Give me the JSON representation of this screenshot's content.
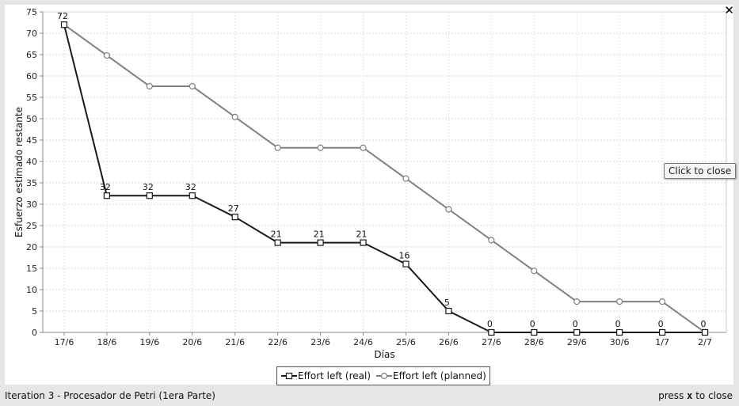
{
  "window": {
    "caption": "Iteration 3 - Procesador de Petri (1era Parte)",
    "hint_prefix": "press",
    "hint_key": "x",
    "hint_suffix": "to close",
    "close_glyph": "✕",
    "close_icon": "close-icon",
    "tooltip": "Click to close"
  },
  "chart_data": {
    "type": "line",
    "xlabel": "Días",
    "ylabel": "Esfuerzo estimado restante",
    "categories": [
      "17/6",
      "18/6",
      "19/6",
      "20/6",
      "21/6",
      "22/6",
      "23/6",
      "24/6",
      "25/6",
      "26/6",
      "27/6",
      "28/6",
      "29/6",
      "30/6",
      "1/7",
      "2/7"
    ],
    "ylim": [
      0,
      75
    ],
    "yticks": [
      0,
      5,
      10,
      15,
      20,
      25,
      30,
      35,
      40,
      45,
      50,
      55,
      60,
      65,
      70,
      75
    ],
    "grid": true,
    "legend_position": "bottom",
    "series": [
      {
        "name": "Effort left (real)",
        "color": "#1a1a1a",
        "marker": "square",
        "show_labels": true,
        "values": [
          72,
          32,
          32,
          32,
          27,
          21,
          21,
          21,
          16,
          5,
          0,
          0,
          0,
          0,
          0,
          0
        ]
      },
      {
        "name": "Effort left (planned)",
        "color": "#808080",
        "marker": "circle",
        "show_labels": false,
        "values": [
          72,
          64.8,
          57.6,
          57.6,
          50.4,
          43.2,
          43.2,
          43.2,
          36,
          28.8,
          21.6,
          14.4,
          7.2,
          7.2,
          7.2,
          0
        ]
      }
    ]
  }
}
